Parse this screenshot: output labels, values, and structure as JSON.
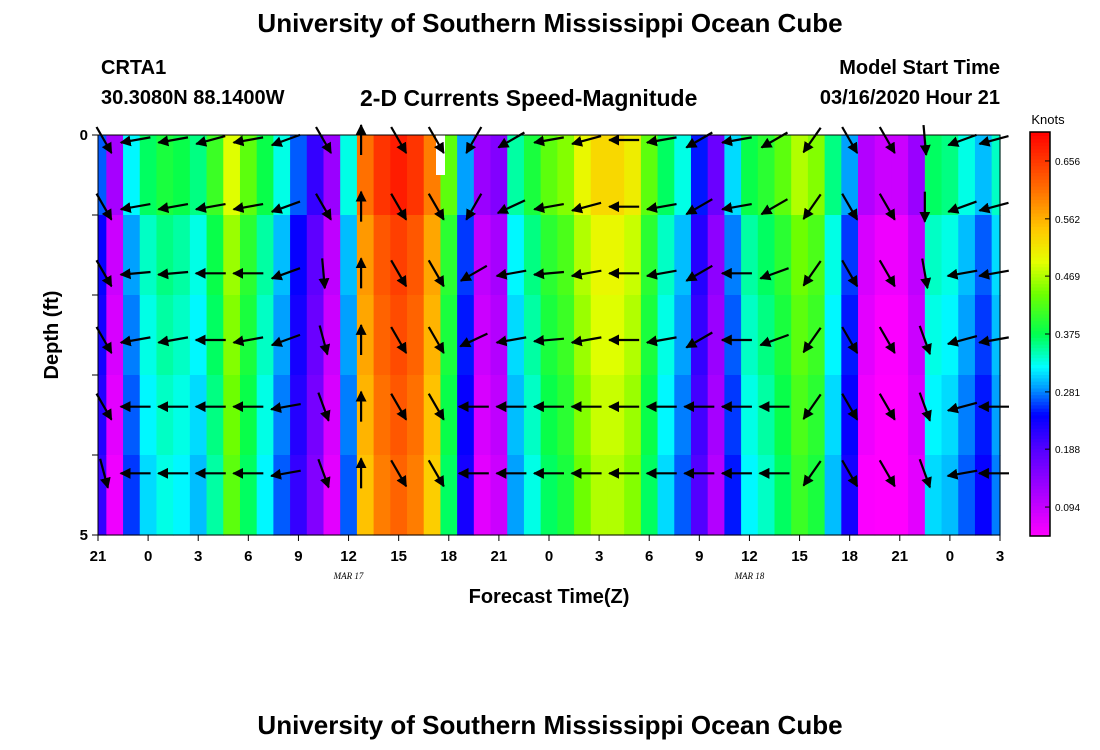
{
  "header": {
    "title": "University of Southern Mississippi Ocean Cube",
    "station": "CRTA1",
    "coords": "30.3080N 88.1400W",
    "subtitle": "2-D Currents Speed-Magnitude",
    "model_label": "Model Start Time",
    "model_time": "03/16/2020 Hour 21"
  },
  "footer": {
    "title": "University of Southern Mississippi Ocean Cube"
  },
  "chart_data": {
    "type": "heatmap",
    "title": "2-D Currents Speed-Magnitude",
    "xlabel": "Forecast Time(Z)",
    "ylabel": "Depth (ft)",
    "x_hours": [
      0,
      54
    ],
    "x_tick_labels": [
      "21",
      "0",
      "3",
      "6",
      "9",
      "12",
      "15",
      "18",
      "21",
      "0",
      "3",
      "6",
      "9",
      "12",
      "15",
      "18",
      "21",
      "0",
      "3"
    ],
    "date_labels": [
      {
        "text": "MAR 17",
        "hour": 15
      },
      {
        "text": "MAR 18",
        "hour": 39
      }
    ],
    "y_tick_labels": [
      "0",
      "5"
    ],
    "ylim": [
      0,
      5
    ],
    "colorbar": {
      "unit": "Knots",
      "min": 0.047,
      "max": 0.703,
      "ticks": [
        "0.656",
        "0.562",
        "0.469",
        "0.375",
        "0.281",
        "0.188",
        "0.094"
      ],
      "tick_values": [
        0.656,
        0.562,
        0.469,
        0.375,
        0.281,
        0.188,
        0.094
      ]
    },
    "speed_by_hour": [
      0.24,
      0.09,
      0.29,
      0.34,
      0.36,
      0.35,
      0.33,
      0.38,
      0.46,
      0.4,
      0.35,
      0.3,
      0.24,
      0.18,
      0.1,
      0.3,
      0.58,
      0.63,
      0.65,
      0.63,
      0.57,
      0.4,
      0.26,
      0.1,
      0.12,
      0.32,
      0.36,
      0.4,
      0.42,
      0.47,
      0.5,
      0.5,
      0.48,
      0.4,
      0.34,
      0.3,
      0.22,
      0.14,
      0.28,
      0.35,
      0.37,
      0.4,
      0.44,
      0.42,
      0.33,
      0.26,
      0.08,
      0.06,
      0.06,
      0.1,
      0.34,
      0.33,
      0.3,
      0.27,
      0.31
    ],
    "vector_directions_deg": [
      [
        300,
        190,
        190,
        195,
        190,
        200,
        300,
        90,
        300,
        300,
        240,
        210,
        190,
        195,
        180,
        190,
        210,
        190,
        210,
        235,
        300,
        300,
        275,
        200,
        195
      ],
      [
        300,
        190,
        190,
        190,
        190,
        200,
        300,
        90,
        300,
        300,
        240,
        205,
        190,
        195,
        180,
        190,
        210,
        190,
        210,
        235,
        300,
        300,
        270,
        200,
        195
      ],
      [
        300,
        185,
        185,
        180,
        180,
        200,
        275,
        90,
        300,
        300,
        210,
        190,
        185,
        190,
        180,
        190,
        210,
        180,
        200,
        235,
        300,
        300,
        280,
        190,
        190
      ],
      [
        300,
        190,
        190,
        180,
        190,
        200,
        285,
        90,
        300,
        300,
        205,
        190,
        185,
        190,
        180,
        190,
        210,
        180,
        200,
        235,
        300,
        300,
        290,
        195,
        190
      ],
      [
        300,
        180,
        180,
        180,
        180,
        190,
        290,
        90,
        300,
        300,
        180,
        180,
        180,
        180,
        180,
        180,
        180,
        180,
        180,
        235,
        300,
        300,
        290,
        195,
        180
      ],
      [
        285,
        180,
        180,
        180,
        180,
        190,
        290,
        90,
        300,
        300,
        180,
        180,
        180,
        180,
        180,
        180,
        180,
        180,
        180,
        235,
        300,
        300,
        290,
        190,
        180
      ]
    ]
  }
}
